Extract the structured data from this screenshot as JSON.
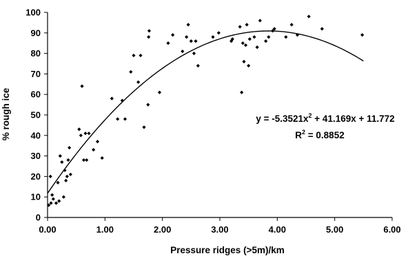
{
  "chart_data": {
    "type": "scatter",
    "xlabel": "Pressure ridges (>5m)/km",
    "ylabel": "% rough ice",
    "xlim": [
      0,
      6
    ],
    "ylim": [
      0,
      100
    ],
    "x_ticks": [
      0,
      1,
      2,
      3,
      4,
      5,
      6
    ],
    "x_tick_labels": [
      "0.00",
      "1.00",
      "2.00",
      "3.00",
      "4.00",
      "5.00",
      "6.00"
    ],
    "y_ticks": [
      0,
      10,
      20,
      30,
      40,
      50,
      60,
      70,
      80,
      90,
      100
    ],
    "y_tick_labels": [
      "0",
      "10",
      "20",
      "30",
      "40",
      "50",
      "60",
      "70",
      "80",
      "90",
      "100"
    ],
    "grid": false,
    "legend": false,
    "marker_color": "#000000",
    "trendline": {
      "type": "polynomial",
      "coefficients": {
        "a": -5.3521,
        "b": 41.169,
        "c": 11.772
      },
      "x_range": [
        0,
        5.5
      ],
      "color": "#000000"
    },
    "annotation": {
      "equation_prefix": "y = -5.3521x",
      "equation_exp": "2",
      "equation_suffix": " + 41.169x + 11.772",
      "r2_prefix": "R",
      "r2_exp": "2",
      "r2_suffix": " = 0.8852",
      "position": "right-middle"
    },
    "points": [
      [
        0.02,
        6
      ],
      [
        0.05,
        20
      ],
      [
        0.06,
        7
      ],
      [
        0.08,
        11
      ],
      [
        0.1,
        9
      ],
      [
        0.15,
        7
      ],
      [
        0.18,
        17
      ],
      [
        0.2,
        8
      ],
      [
        0.22,
        30
      ],
      [
        0.25,
        27
      ],
      [
        0.28,
        10
      ],
      [
        0.3,
        23
      ],
      [
        0.32,
        18
      ],
      [
        0.34,
        20
      ],
      [
        0.36,
        28
      ],
      [
        0.38,
        34
      ],
      [
        0.4,
        21
      ],
      [
        0.55,
        43
      ],
      [
        0.58,
        40
      ],
      [
        0.6,
        64
      ],
      [
        0.63,
        28
      ],
      [
        0.66,
        41
      ],
      [
        0.68,
        28
      ],
      [
        0.72,
        41
      ],
      [
        0.8,
        33
      ],
      [
        0.87,
        37
      ],
      [
        0.95,
        29
      ],
      [
        1.12,
        58
      ],
      [
        1.22,
        48
      ],
      [
        1.3,
        57
      ],
      [
        1.35,
        48
      ],
      [
        1.45,
        71
      ],
      [
        1.5,
        79
      ],
      [
        1.58,
        66
      ],
      [
        1.62,
        79
      ],
      [
        1.68,
        44
      ],
      [
        1.75,
        55
      ],
      [
        1.76,
        88
      ],
      [
        1.77,
        91
      ],
      [
        1.95,
        61
      ],
      [
        2.1,
        85
      ],
      [
        2.18,
        89
      ],
      [
        2.35,
        81
      ],
      [
        2.42,
        88
      ],
      [
        2.45,
        94
      ],
      [
        2.5,
        86
      ],
      [
        2.55,
        80
      ],
      [
        2.58,
        86
      ],
      [
        2.62,
        74
      ],
      [
        2.88,
        88
      ],
      [
        2.98,
        90
      ],
      [
        3.2,
        86
      ],
      [
        3.22,
        87
      ],
      [
        3.35,
        93
      ],
      [
        3.38,
        61
      ],
      [
        3.4,
        85
      ],
      [
        3.42,
        76
      ],
      [
        3.45,
        84
      ],
      [
        3.47,
        94
      ],
      [
        3.5,
        74
      ],
      [
        3.52,
        87
      ],
      [
        3.6,
        88
      ],
      [
        3.65,
        83
      ],
      [
        3.7,
        96
      ],
      [
        3.8,
        86
      ],
      [
        3.85,
        88
      ],
      [
        3.92,
        91
      ],
      [
        3.95,
        92
      ],
      [
        4.15,
        88
      ],
      [
        4.25,
        94
      ],
      [
        4.35,
        89
      ],
      [
        4.55,
        98
      ],
      [
        4.78,
        92
      ],
      [
        5.48,
        89
      ]
    ]
  }
}
